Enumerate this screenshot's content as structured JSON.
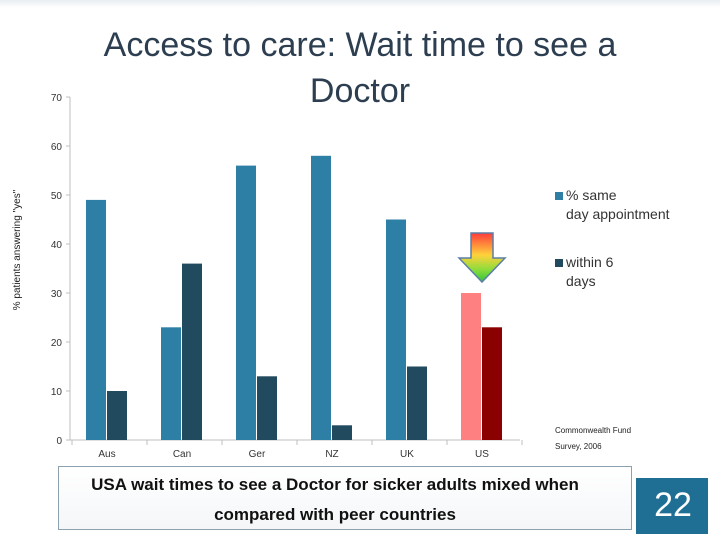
{
  "chart_data": {
    "type": "bar",
    "title": "Access to care: Wait time to see a Doctor",
    "ylabel": "% patients answering \"yes\"",
    "xlabel": "",
    "ylim": [
      0,
      70
    ],
    "yticks": [
      0,
      10,
      20,
      30,
      40,
      50,
      60,
      70
    ],
    "categories": [
      "Aus",
      "Can",
      "Ger",
      "NZ",
      "UK",
      "US"
    ],
    "series": [
      {
        "name": "% same day appointment",
        "values": [
          49,
          23,
          56,
          58,
          45,
          30
        ],
        "color": "#2e7fa6",
        "highlight_color": "#ff8080"
      },
      {
        "name": "within 6 days",
        "values": [
          10,
          36,
          13,
          3,
          15,
          23
        ],
        "color": "#214a5e",
        "highlight_color": "#8b0000"
      }
    ],
    "highlight_category": "US",
    "legend_position": "right",
    "grid": false,
    "annotation": [
      "Commonwealth Fund",
      "Survey, 2006"
    ]
  },
  "caption": "USA wait times to see a Doctor for sicker adults mixed when compared with peer countries",
  "page_number": "22"
}
